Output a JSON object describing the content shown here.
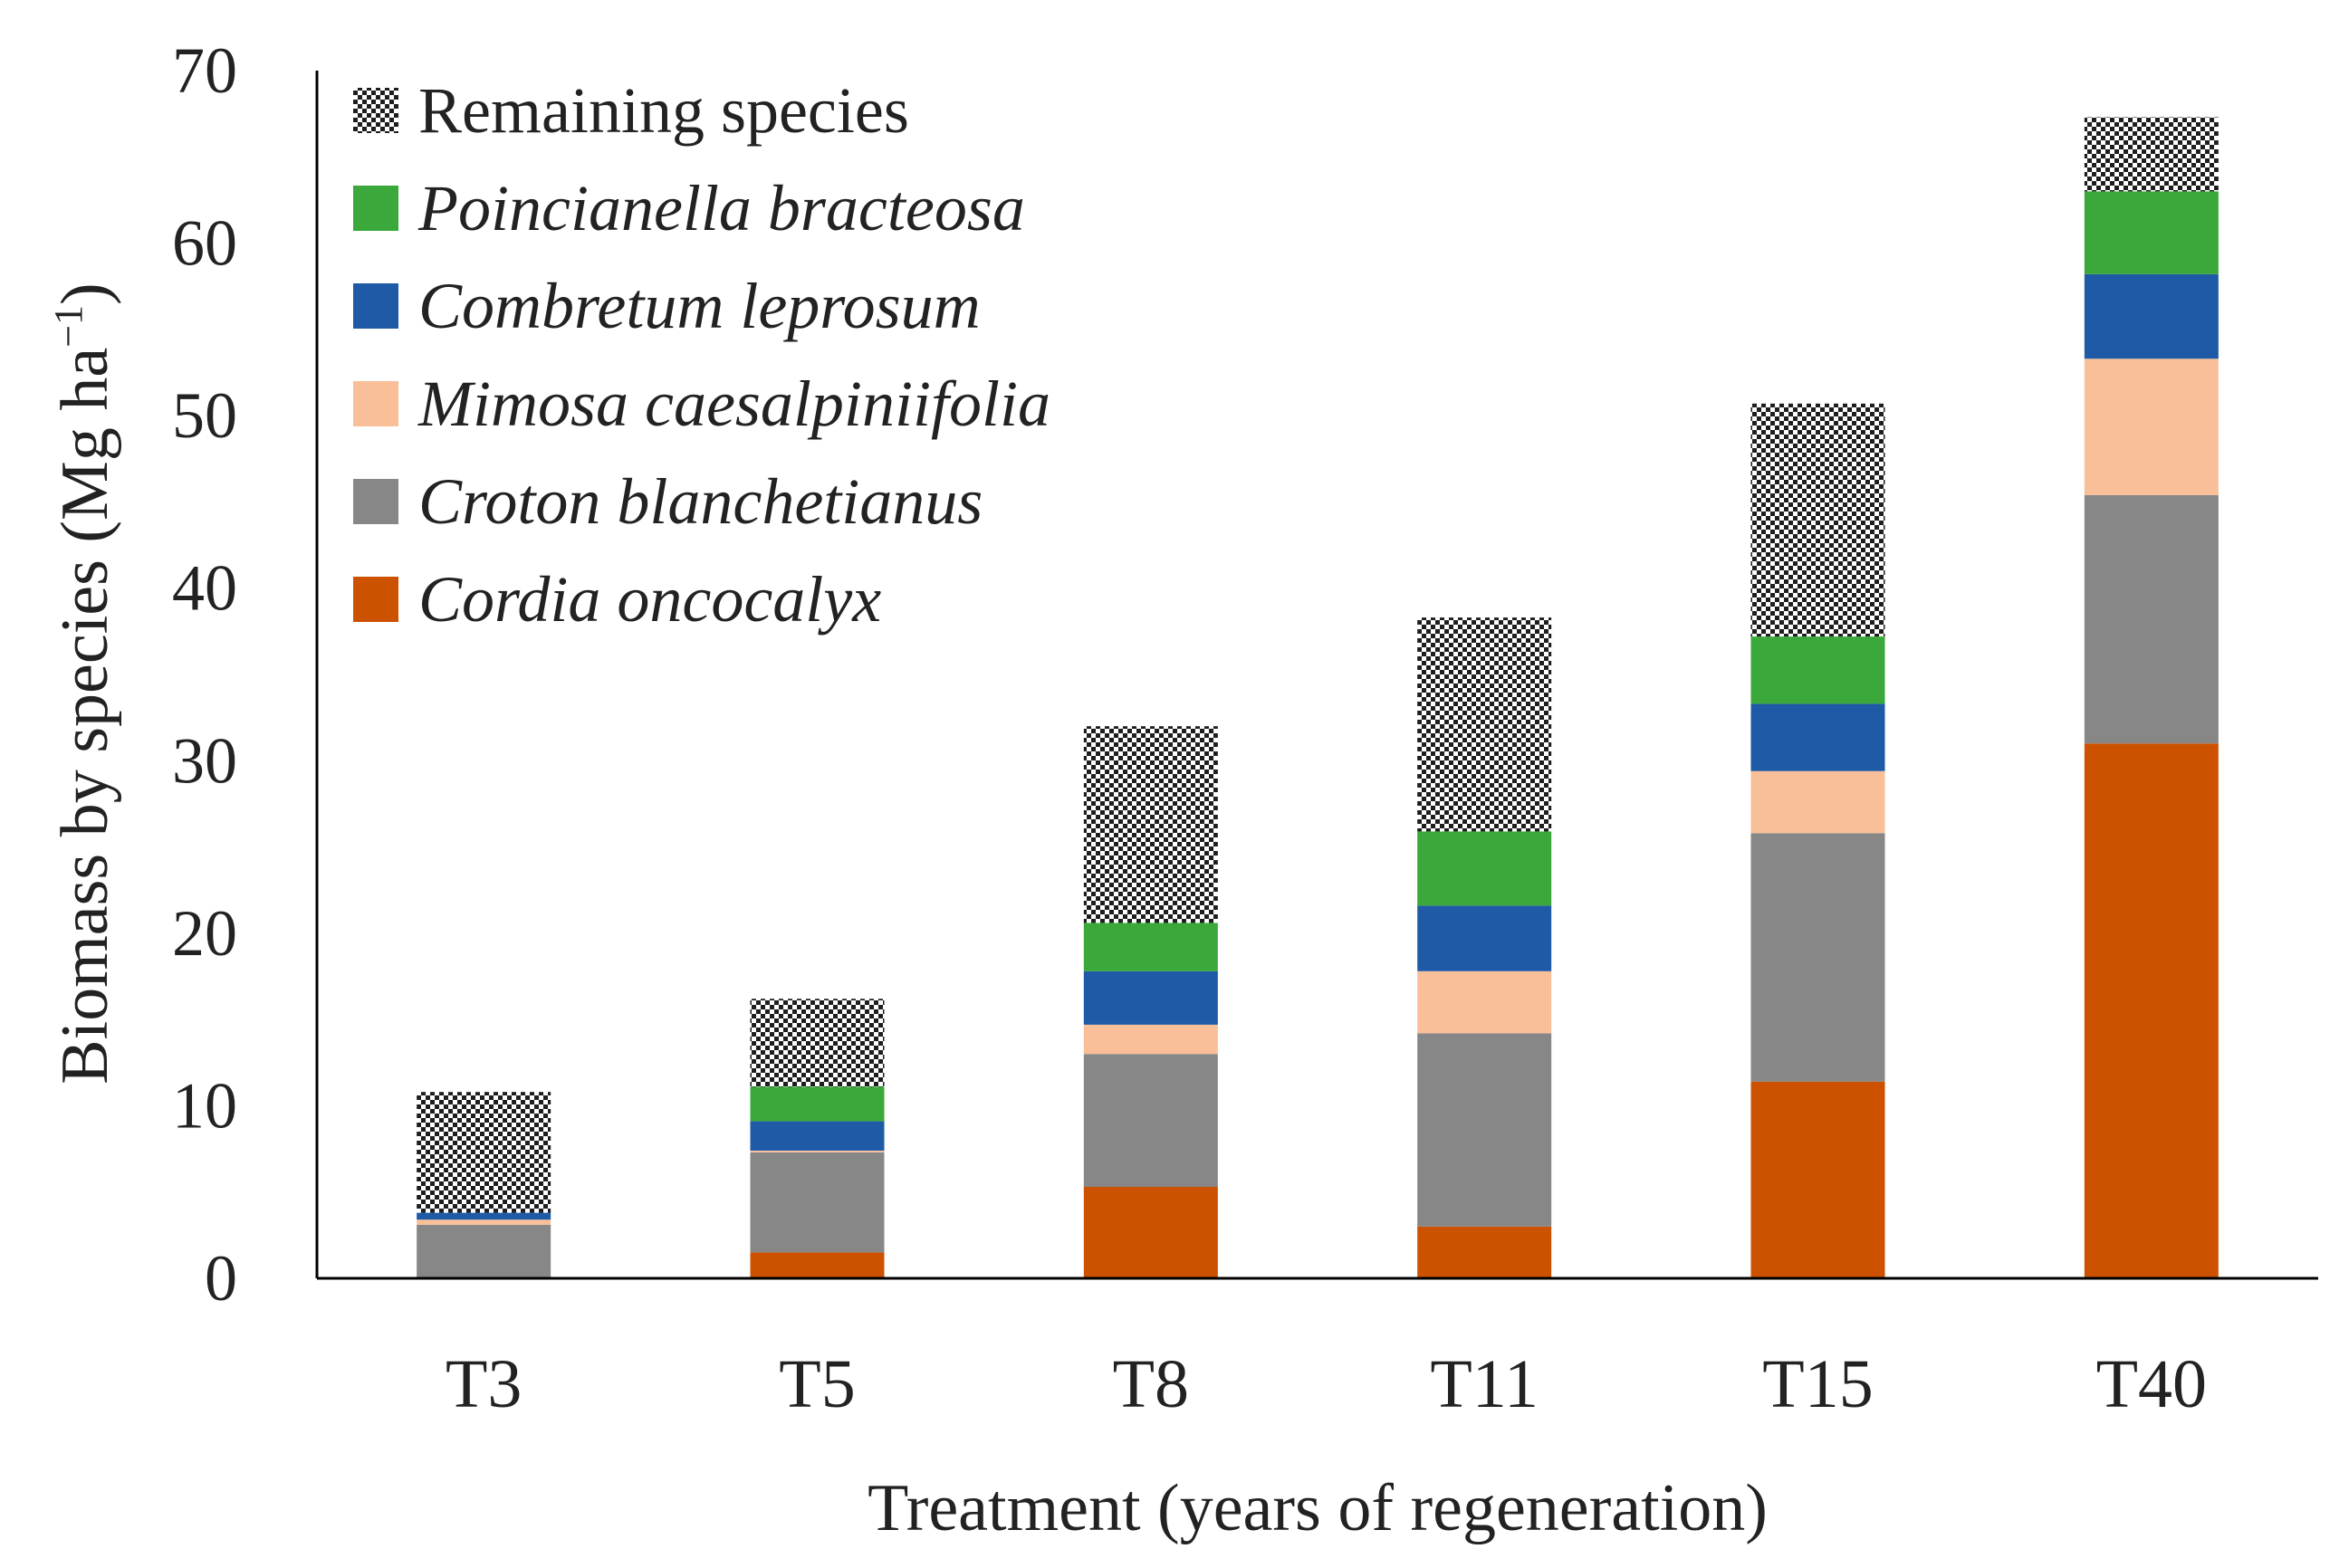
{
  "chart_data": {
    "type": "bar",
    "stacked": true,
    "title": "",
    "xlabel": "Treatment (years of regeneration)",
    "ylabel": {
      "main": "Biomass by species (Mg ha",
      "superscript": "−1",
      "close": ")"
    },
    "ylim": [
      0,
      70
    ],
    "yticks": [
      "0",
      "10",
      "20",
      "30",
      "40",
      "50",
      "60",
      "70"
    ],
    "categories": [
      "T3",
      "T5",
      "T8",
      "T11",
      "T15",
      "T40"
    ],
    "legend_position": "top-left",
    "series": [
      {
        "name": "Cordia oncocalyx",
        "italic": true,
        "color": "#cc5200",
        "pattern": false,
        "values": [
          0,
          1.5,
          5.3,
          3.0,
          11.4,
          31.0
        ]
      },
      {
        "name": "Croton blanchetianus",
        "italic": true,
        "color": "#878787",
        "pattern": false,
        "values": [
          3.1,
          5.8,
          7.7,
          11.2,
          14.4,
          14.4
        ]
      },
      {
        "name": "Mimosa caesalpiniifolia",
        "italic": true,
        "color": "#f9bf99",
        "pattern": false,
        "values": [
          0.3,
          0.1,
          1.7,
          3.6,
          3.6,
          7.9
        ]
      },
      {
        "name": "Combretum leprosum",
        "italic": true,
        "color": "#1f5aa6",
        "pattern": false,
        "values": [
          0.4,
          1.7,
          3.1,
          3.8,
          3.9,
          4.9
        ]
      },
      {
        "name": "Poincianella bracteosa",
        "italic": true,
        "color": "#3aa83a",
        "pattern": false,
        "values": [
          0,
          2.0,
          2.8,
          4.3,
          3.9,
          4.8
        ]
      },
      {
        "name": "Remaining species",
        "italic": false,
        "color": "#222222",
        "pattern": true,
        "values": [
          7.0,
          5.1,
          11.4,
          12.4,
          13.5,
          4.3
        ]
      }
    ]
  }
}
